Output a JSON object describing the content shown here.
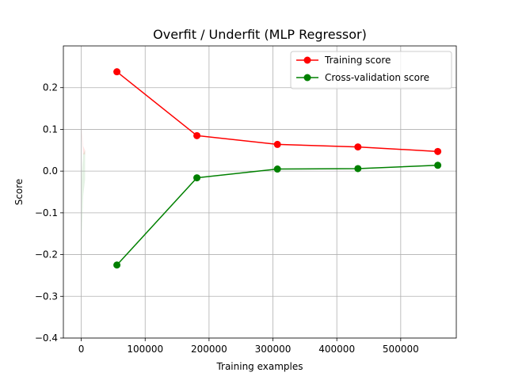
{
  "chart_data": {
    "type": "line",
    "title": "Overfit / Underfit (MLP Regressor)",
    "xlabel": "Training examples",
    "ylabel": "Score",
    "xlim": [
      -28000,
      587000
    ],
    "ylim": [
      -0.4,
      0.3
    ],
    "grid": true,
    "legend_position": "top-right",
    "x_ticks": [
      0,
      100000,
      200000,
      300000,
      400000,
      500000
    ],
    "x_tick_labels": [
      "0",
      "100000",
      "200000",
      "300000",
      "400000",
      "500000"
    ],
    "y_ticks": [
      -0.4,
      -0.3,
      -0.2,
      -0.1,
      0.0,
      0.1,
      0.2
    ],
    "y_tick_labels": [
      "−0.4",
      "−0.3",
      "−0.2",
      "−0.1",
      "0.0",
      "0.1",
      "0.2"
    ],
    "x": [
      55800,
      181000,
      307000,
      433000,
      558000
    ],
    "series": [
      {
        "name": "Training score",
        "color": "#ff0000",
        "values": [
          0.238,
          0.085,
          0.064,
          0.058,
          0.047
        ]
      },
      {
        "name": "Cross-validation score",
        "color": "#008000",
        "values": [
          -0.225,
          -0.016,
          0.005,
          0.006,
          0.014
        ]
      }
    ],
    "bands": [
      {
        "series": "Training score",
        "color": "#ff0000",
        "opacity": 0.1,
        "x": [
          0,
          1000,
          3000,
          6000
        ],
        "upper": [
          0.27,
          0.1,
          0.06,
          0.05
        ],
        "lower": [
          0.15,
          0.08,
          0.04,
          0.04
        ]
      },
      {
        "series": "Cross-validation score",
        "color": "#008000",
        "opacity": 0.1,
        "x": [
          0,
          1000,
          3000,
          6000
        ],
        "upper": [
          -0.05,
          0.0,
          0.04,
          0.05
        ],
        "lower": [
          -0.4,
          -0.15,
          -0.06,
          -0.02
        ]
      }
    ]
  }
}
